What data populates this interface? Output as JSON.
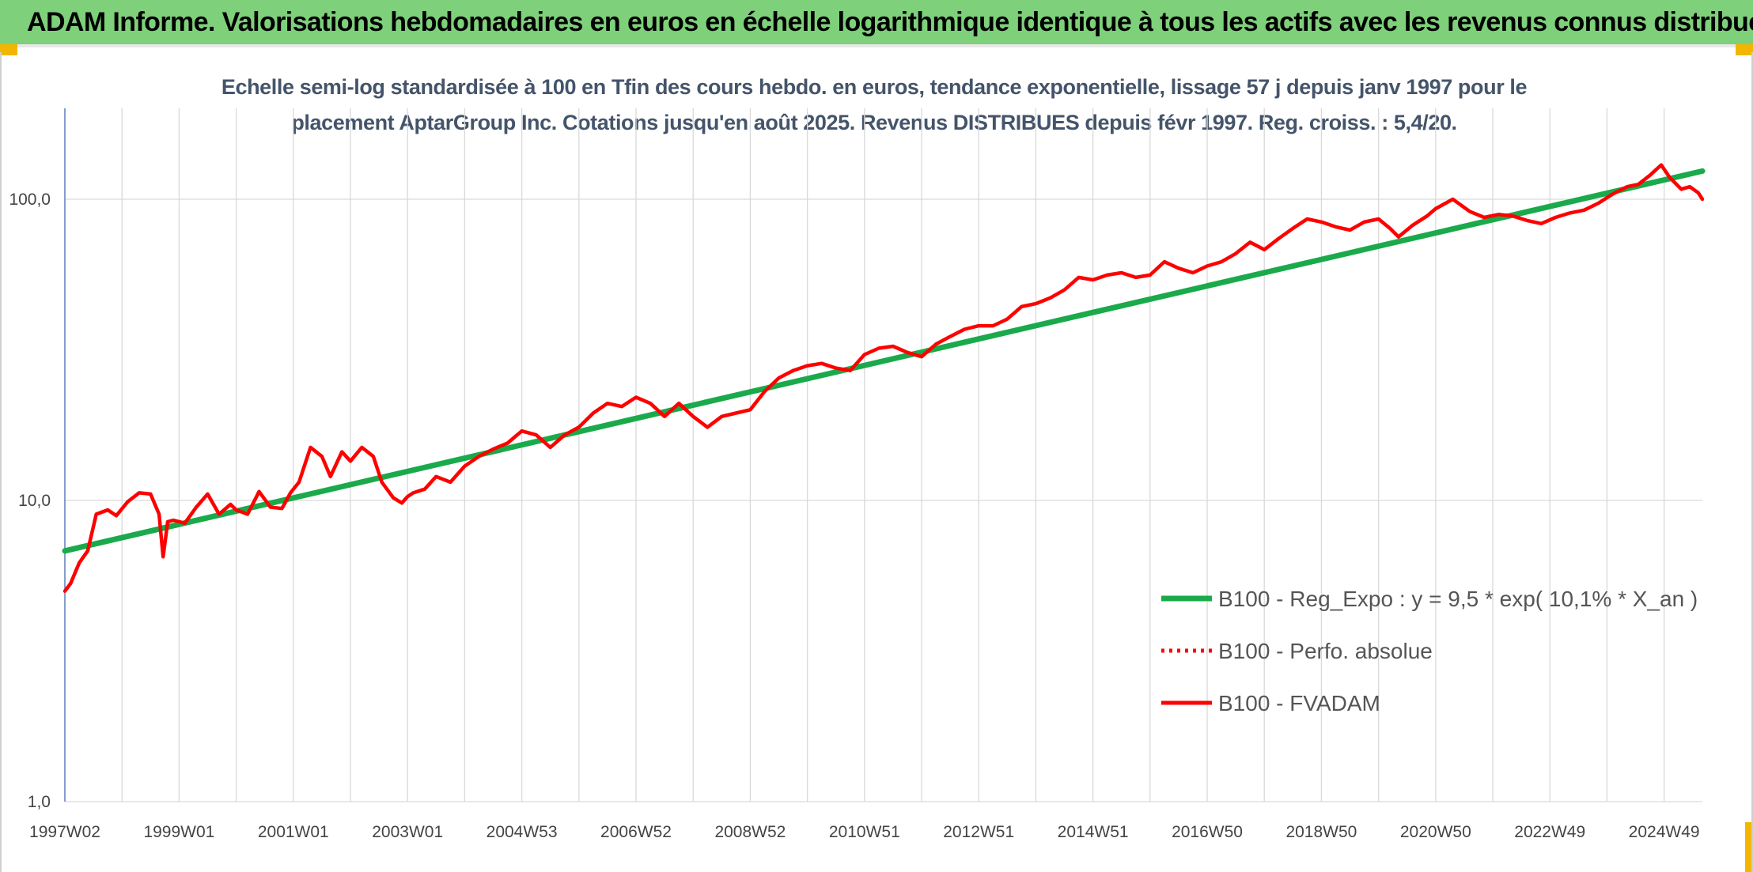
{
  "banner": {
    "title": "ADAM Informe. Valorisations hebdomadaires en euros en échelle logarithmique identique à tous les actifs avec les revenus connus distribués",
    "color": "#7ed07a"
  },
  "chart_data": {
    "type": "line",
    "title_line1": "Echelle semi-log standardisée à 100 en Tfin des cours hebdo. en euros, tendance exponentielle, lissage 57 j depuis janv 1997 pour le",
    "title_line2": "placement AptarGroup Inc. Cotations jusqu'en août 2025. Revenus DISTRIBUES depuis févr 1997. Reg. croiss. : 5,4/20.",
    "y_scale": "log",
    "ylim": [
      1,
      200
    ],
    "y_ticks": [
      {
        "value": 1,
        "label": "1,0"
      },
      {
        "value": 10,
        "label": "10,0"
      },
      {
        "value": 100,
        "label": "100,0"
      }
    ],
    "xlim": [
      1997.0,
      2025.67
    ],
    "x_ticks": [
      {
        "value": 1997.0,
        "label": "1997W02"
      },
      {
        "value": 1999.0,
        "label": "1999W01"
      },
      {
        "value": 2001.0,
        "label": "2001W01"
      },
      {
        "value": 2003.0,
        "label": "2003W01"
      },
      {
        "value": 2005.0,
        "label": "2004W53"
      },
      {
        "value": 2007.0,
        "label": "2006W52"
      },
      {
        "value": 2009.0,
        "label": "2008W52"
      },
      {
        "value": 2011.0,
        "label": "2010W51"
      },
      {
        "value": 2013.0,
        "label": "2012W51"
      },
      {
        "value": 2015.0,
        "label": "2014W51"
      },
      {
        "value": 2017.0,
        "label": "2016W50"
      },
      {
        "value": 2019.0,
        "label": "2018W50"
      },
      {
        "value": 2021.0,
        "label": "2020W50"
      },
      {
        "value": 2023.0,
        "label": "2022W49"
      },
      {
        "value": 2025.0,
        "label": "2024W49"
      }
    ],
    "grid": true,
    "legend_position": "bottom-right",
    "series": [
      {
        "name": "B100 - Reg_Expo : y = 9,5 * exp( 10,1% *  X_an )",
        "color": "#1aaa4b",
        "style": "solid",
        "x": [
          1997.0,
          2025.67
        ],
        "values": [
          6.8,
          124
        ]
      },
      {
        "name": "B100 - Perfo. absolue",
        "color": "#ff0000",
        "style": "dotted",
        "x": [],
        "values": []
      },
      {
        "name": "B100 - FVADAM",
        "color": "#ff0000",
        "style": "solid",
        "x": [
          1997.0,
          1997.1,
          1997.25,
          1997.4,
          1997.55,
          1997.75,
          1997.9,
          1998.1,
          1998.3,
          1998.5,
          1998.65,
          1998.72,
          1998.8,
          1998.9,
          1999.1,
          1999.3,
          1999.5,
          1999.7,
          1999.9,
          2000.0,
          2000.2,
          2000.4,
          2000.6,
          2000.8,
          2000.95,
          2001.1,
          2001.3,
          2001.5,
          2001.65,
          2001.85,
          2002.0,
          2002.2,
          2002.4,
          2002.55,
          2002.75,
          2002.9,
          2003.0,
          2003.1,
          2003.3,
          2003.5,
          2003.75,
          2004.0,
          2004.25,
          2004.5,
          2004.75,
          2005.0,
          2005.25,
          2005.5,
          2005.75,
          2006.0,
          2006.25,
          2006.5,
          2006.75,
          2007.0,
          2007.25,
          2007.5,
          2007.75,
          2008.0,
          2008.25,
          2008.5,
          2008.75,
          2009.0,
          2009.25,
          2009.5,
          2009.75,
          2010.0,
          2010.25,
          2010.5,
          2010.75,
          2011.0,
          2011.25,
          2011.5,
          2011.75,
          2012.0,
          2012.25,
          2012.5,
          2012.75,
          2013.0,
          2013.25,
          2013.5,
          2013.75,
          2014.0,
          2014.25,
          2014.5,
          2014.75,
          2015.0,
          2015.25,
          2015.5,
          2015.75,
          2016.0,
          2016.25,
          2016.5,
          2016.75,
          2017.0,
          2017.25,
          2017.5,
          2017.75,
          2018.0,
          2018.25,
          2018.5,
          2018.75,
          2019.0,
          2019.25,
          2019.5,
          2019.75,
          2020.0,
          2020.2,
          2020.35,
          2020.6,
          2020.85,
          2021.0,
          2021.3,
          2021.6,
          2021.85,
          2022.1,
          2022.35,
          2022.6,
          2022.85,
          2023.1,
          2023.35,
          2023.6,
          2023.85,
          2024.1,
          2024.35,
          2024.55,
          2024.75,
          2024.95,
          2025.1,
          2025.3,
          2025.45,
          2025.6,
          2025.67
        ],
        "values": [
          5.0,
          5.3,
          6.2,
          6.8,
          9.0,
          9.3,
          8.9,
          9.9,
          10.6,
          10.5,
          9.0,
          6.5,
          8.5,
          8.6,
          8.4,
          9.5,
          10.5,
          9.0,
          9.7,
          9.3,
          9.0,
          10.7,
          9.5,
          9.4,
          10.6,
          11.5,
          15.0,
          14.0,
          12.0,
          14.5,
          13.5,
          15.0,
          14.0,
          11.5,
          10.2,
          9.8,
          10.3,
          10.6,
          10.9,
          12.0,
          11.5,
          13.0,
          14.0,
          14.8,
          15.5,
          17.0,
          16.5,
          15.0,
          16.5,
          17.5,
          19.5,
          21.0,
          20.5,
          22.0,
          21.0,
          19.0,
          21.0,
          19.0,
          17.5,
          19.0,
          19.5,
          20.0,
          23.0,
          25.5,
          27.0,
          28.0,
          28.5,
          27.5,
          27.0,
          30.5,
          32.0,
          32.5,
          31.0,
          30.0,
          33.0,
          35.0,
          37.0,
          38.0,
          38.0,
          40.0,
          44.0,
          45.0,
          47.0,
          50.0,
          55.0,
          54.0,
          56.0,
          57.0,
          55.0,
          56.0,
          62.0,
          59.0,
          57.0,
          60.0,
          62.0,
          66.0,
          72.0,
          68.0,
          74.0,
          80.0,
          86.0,
          84.0,
          81.0,
          79.0,
          84.0,
          86.0,
          80.0,
          75.0,
          82.0,
          88.0,
          93.0,
          100.0,
          91.0,
          87.0,
          89.0,
          88.0,
          85.0,
          83.0,
          87.0,
          90.0,
          92.0,
          97.0,
          104.0,
          110.0,
          112.0,
          120.0,
          130.0,
          118.0,
          108.0,
          110.0,
          105.0,
          100.0
        ]
      }
    ]
  }
}
